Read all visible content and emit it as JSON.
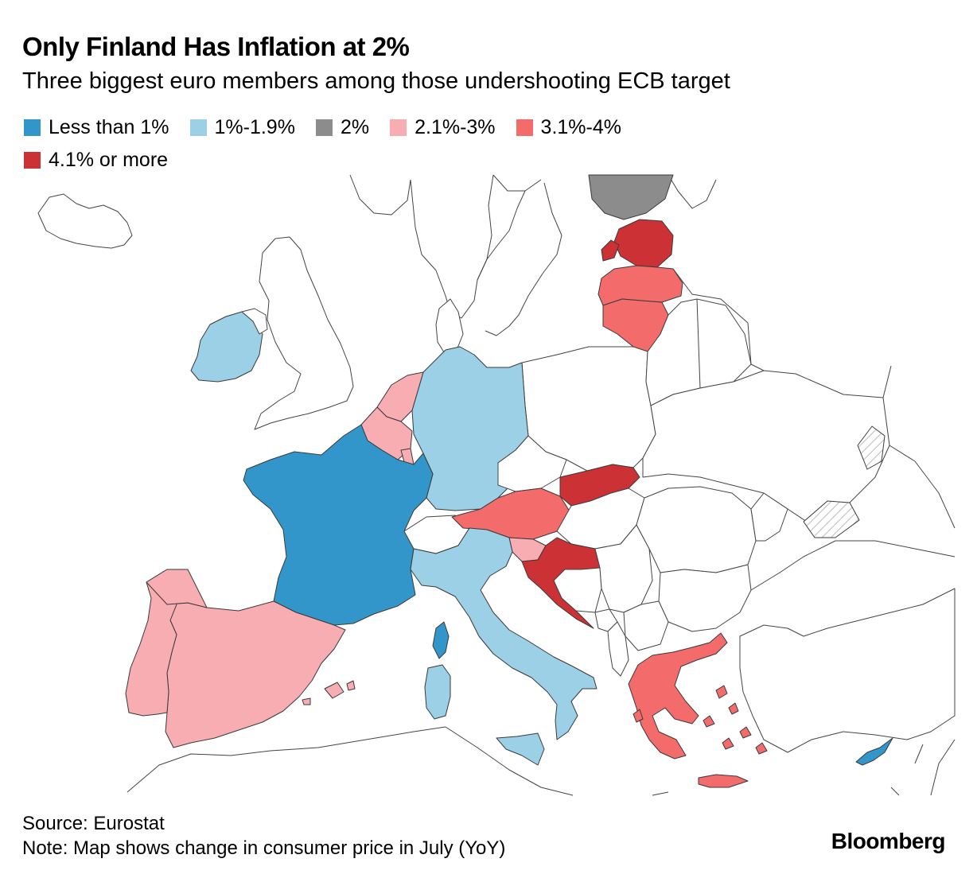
{
  "title": "Only Finland Has Inflation at 2%",
  "subtitle": "Three biggest euro members among those undershooting ECB target",
  "legend": [
    {
      "label": "Less than 1%",
      "color": "#3396cb"
    },
    {
      "label": "1%-1.9%",
      "color": "#9bd0e6"
    },
    {
      "label": "2%",
      "color": "#8c8c8c"
    },
    {
      "label": "2.1%-3%",
      "color": "#f7adb1"
    },
    {
      "label": "3.1%-4%",
      "color": "#f46b6b"
    },
    {
      "label": "4.1% or more",
      "color": "#cc3136"
    }
  ],
  "countries": {
    "less_than_1": [
      "France",
      "Cyprus",
      "Corsica"
    ],
    "1_to_1_9": [
      "Ireland",
      "Germany",
      "Italy",
      "Sardinia",
      "Sicily"
    ],
    "2": [
      "Finland"
    ],
    "2_1_to_3": [
      "Netherlands",
      "Belgium",
      "Spain",
      "Portugal",
      "Slovenia"
    ],
    "3_1_to_4": [
      "Latvia",
      "Lithuania",
      "Austria",
      "Greece"
    ],
    "4_1_or_more": [
      "Estonia",
      "Slovakia",
      "Croatia"
    ]
  },
  "footer": {
    "source": "Source: Eurostat",
    "note": "Note: Map shows change in consumer price in July (YoY)"
  },
  "brand": "Bloomberg"
}
